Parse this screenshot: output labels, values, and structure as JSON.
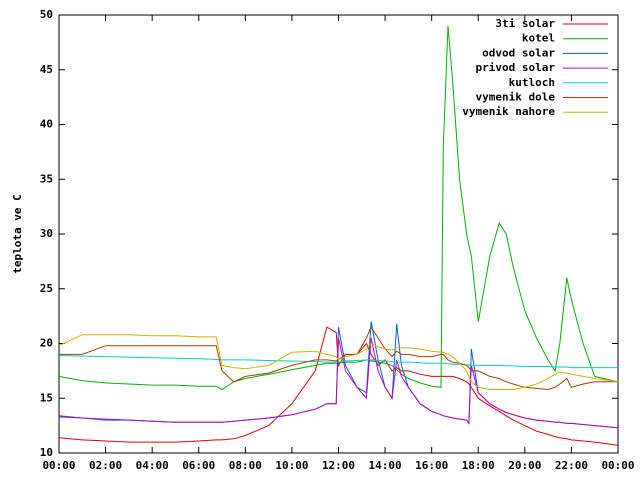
{
  "chart_data": {
    "type": "line",
    "y_label": "teplota ve C",
    "x": [
      0,
      1,
      2,
      3,
      4,
      5,
      6,
      6.75,
      7,
      7.5,
      8,
      9,
      10,
      11,
      11.5,
      11.9,
      12,
      12.3,
      12.8,
      13.2,
      13.4,
      13.7,
      14,
      14.3,
      14.5,
      14.7,
      15,
      15.5,
      16,
      16.4,
      16.5,
      16.7,
      16.9,
      17.2,
      17.5,
      17.6,
      17.7,
      18,
      18.5,
      18.9,
      19.2,
      19.5,
      20,
      20.5,
      21,
      21.3,
      21.5,
      21.8,
      22,
      22.5,
      23,
      24
    ],
    "xlim": [
      0,
      24
    ],
    "xticks": [
      {
        "value": 0,
        "label": "00:00"
      },
      {
        "value": 2,
        "label": "02:00"
      },
      {
        "value": 4,
        "label": "04:00"
      },
      {
        "value": 6,
        "label": "06:00"
      },
      {
        "value": 8,
        "label": "08:00"
      },
      {
        "value": 10,
        "label": "10:00"
      },
      {
        "value": 12,
        "label": "12:00"
      },
      {
        "value": 14,
        "label": "14:00"
      },
      {
        "value": 16,
        "label": "16:00"
      },
      {
        "value": 18,
        "label": "18:00"
      },
      {
        "value": 20,
        "label": "20:00"
      },
      {
        "value": 22,
        "label": "22:00"
      },
      {
        "value": 24,
        "label": "00:00"
      }
    ],
    "ylim": [
      10,
      50
    ],
    "yticks": [
      10,
      15,
      20,
      25,
      30,
      35,
      40,
      45,
      50
    ],
    "grid": false,
    "legend": "top-right",
    "series": [
      {
        "name": "3ti solar",
        "color": "#e00000",
        "values": [
          11.4,
          11.2,
          11.1,
          11,
          11,
          11,
          11.1,
          11.2,
          11.2,
          11.3,
          11.6,
          12.5,
          14.5,
          17.5,
          21.5,
          21,
          18,
          19,
          19,
          20,
          19,
          18,
          18.5,
          17.5,
          17.8,
          17.5,
          17.5,
          17.2,
          17,
          17,
          17,
          17,
          17,
          16.8,
          16.5,
          16.3,
          16,
          15,
          14.3,
          13.8,
          13.4,
          13,
          12.5,
          12,
          11.7,
          11.5,
          11.4,
          11.3,
          11.2,
          11.1,
          11,
          10.7
        ]
      },
      {
        "name": "kotel",
        "color": "#00b000",
        "values": [
          17,
          16.6,
          16.4,
          16.3,
          16.2,
          16.2,
          16.1,
          16.1,
          15.8,
          16.5,
          16.8,
          17.2,
          17.6,
          18,
          18.2,
          18.2,
          18.2,
          18.3,
          18.3,
          18.5,
          18.4,
          18.3,
          18.2,
          18,
          17.6,
          17.2,
          16.8,
          16.4,
          16.1,
          16,
          38,
          49,
          44,
          35,
          30,
          29,
          28,
          22,
          28,
          31,
          30,
          27,
          23,
          20.5,
          18.5,
          17.5,
          20,
          26,
          24,
          20,
          17,
          16.5
        ]
      },
      {
        "name": "odvod solar",
        "color": "#0060e0",
        "values": [
          13.3,
          13.2,
          13,
          13,
          12.9,
          12.8,
          12.8,
          12.8,
          12.8,
          12.9,
          13,
          13.2,
          13.5,
          14,
          14.5,
          14.5,
          21.5,
          18,
          16,
          15.5,
          22,
          18.5,
          16,
          15,
          21.8,
          18,
          16,
          14.5,
          13.8,
          13.5,
          13.4,
          13.3,
          13.2,
          13.1,
          13,
          12.7,
          19.5,
          15.5,
          14.5,
          14,
          13.7,
          13.5,
          13.2,
          13,
          12.9,
          12.8,
          12.8,
          12.7,
          12.7,
          12.6,
          12.5,
          12.3
        ]
      },
      {
        "name": "privod solar",
        "color": "#c000c0",
        "values": [
          13.4,
          13.2,
          13.1,
          13,
          12.9,
          12.8,
          12.8,
          12.8,
          12.8,
          12.9,
          13,
          13.2,
          13.5,
          14,
          14.5,
          14.5,
          20.5,
          17.5,
          16,
          15,
          20.5,
          17.5,
          16,
          15,
          18.5,
          17,
          16,
          14.5,
          13.8,
          13.5,
          13.4,
          13.3,
          13.2,
          13.1,
          13,
          12.7,
          18,
          15.5,
          14.5,
          14,
          13.7,
          13.5,
          13.2,
          13,
          12.9,
          12.8,
          12.8,
          12.7,
          12.7,
          12.6,
          12.5,
          12.3
        ]
      },
      {
        "name": "kutloch",
        "color": "#00d0d0",
        "values": [
          18.9,
          18.85,
          18.8,
          18.75,
          18.7,
          18.65,
          18.6,
          18.55,
          18.5,
          18.5,
          18.5,
          18.45,
          18.4,
          18.35,
          18.3,
          18.3,
          18.3,
          18.4,
          18.45,
          18.5,
          18.5,
          18.45,
          18.4,
          18.35,
          18.3,
          18.3,
          18.3,
          18.25,
          18.2,
          18.2,
          18.2,
          18.15,
          18.1,
          18.1,
          18.05,
          18.05,
          18,
          18,
          18,
          18,
          17.95,
          17.95,
          17.9,
          17.9,
          17.9,
          17.85,
          17.85,
          17.85,
          17.8,
          17.8,
          17.8,
          17.8
        ]
      },
      {
        "name": "vymenik dole",
        "color": "#a04000",
        "values": [
          19,
          19,
          19.8,
          19.8,
          19.8,
          19.8,
          19.8,
          19.8,
          17.5,
          16.5,
          17,
          17.3,
          18,
          18.5,
          18.5,
          18.4,
          18.5,
          19,
          19,
          20.5,
          21.5,
          20.5,
          19.5,
          18.8,
          19.3,
          19,
          19,
          18.8,
          18.8,
          19,
          19,
          18.5,
          18.3,
          18.2,
          18,
          17.8,
          17.5,
          17.5,
          17,
          16.8,
          16.5,
          16.3,
          16,
          15.9,
          15.8,
          16,
          16.3,
          16.8,
          16,
          16.3,
          16.5,
          16.5
        ]
      },
      {
        "name": "vymenik nahore",
        "color": "#d0b000",
        "values": [
          19.8,
          20.8,
          20.8,
          20.8,
          20.7,
          20.7,
          20.6,
          20.6,
          18,
          17.8,
          17.7,
          18,
          19.2,
          19.3,
          19,
          18.8,
          18.5,
          18.8,
          19,
          19.5,
          20,
          19.7,
          19.5,
          19.4,
          19.6,
          19.6,
          19.6,
          19.5,
          19.3,
          19.2,
          19.2,
          19,
          18.8,
          18.2,
          17.5,
          17,
          16.5,
          16,
          15.8,
          15.8,
          15.8,
          15.8,
          16,
          16.3,
          16.8,
          17.2,
          17.4,
          17.3,
          17.2,
          17,
          16.8,
          16.5
        ]
      }
    ]
  }
}
